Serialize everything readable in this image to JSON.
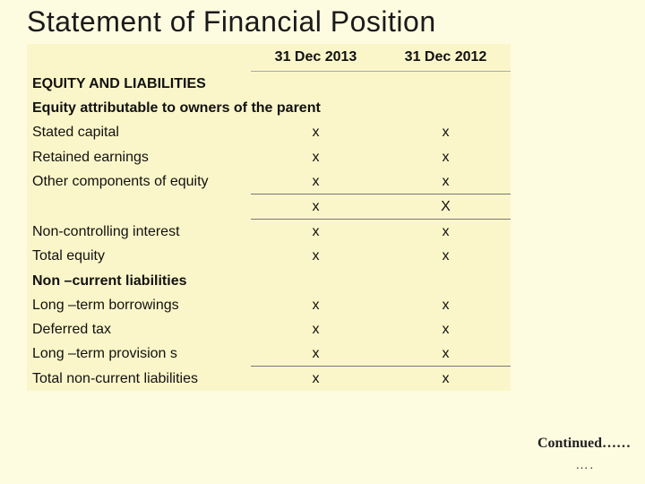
{
  "colors": {
    "background": "#fdfce0",
    "table_bg": "#fbf6c9",
    "border": "#aaaaaa",
    "text": "#111111"
  },
  "title": "Statement of Financial Position",
  "columns": {
    "col1": "31 Dec 2013",
    "col2": "31 Dec 2012"
  },
  "rows": {
    "sec1": "EQUITY AND LIABILITIES",
    "sub1": "Equity attributable to owners of the parent",
    "r1": {
      "label": "Stated capital",
      "v1": "x",
      "v2": "x"
    },
    "r2": {
      "label": "Retained earnings",
      "v1": "x",
      "v2": "x"
    },
    "r3": {
      "label": "Other  components of equity",
      "v1": "x",
      "v2": "x"
    },
    "r4": {
      "label": "",
      "v1": "x",
      "v2": "X"
    },
    "r5": {
      "label": "Non-controlling interest",
      "v1": "x",
      "v2": "x"
    },
    "r6": {
      "label": "Total equity",
      "v1": "x",
      "v2": "x"
    },
    "sec2": "Non –current liabilities",
    "r7": {
      "label": "Long –term borrowings",
      "v1": "x",
      "v2": "x"
    },
    "r8": {
      "label": "Deferred tax",
      "v1": "x",
      "v2": "x"
    },
    "r9": {
      "label": "Long –term provision s",
      "v1": "x",
      "v2": "x"
    },
    "r10": {
      "label": "Total non-current liabilities",
      "v1": "x",
      "v2": "x"
    }
  },
  "footer": {
    "continued": "Continued……",
    "dots": "…."
  }
}
